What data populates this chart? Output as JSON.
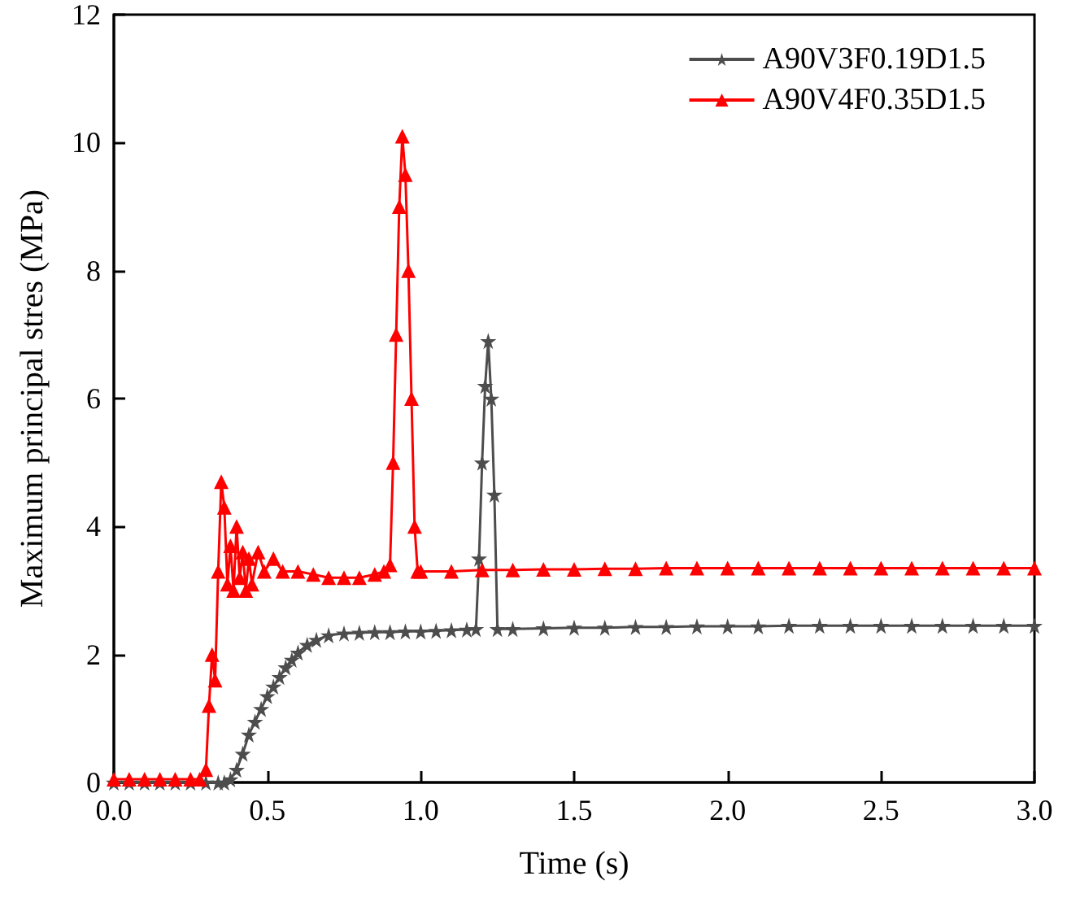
{
  "chart_data": {
    "type": "line",
    "xlabel": "Time (s)",
    "ylabel": "Maximum principal stres (MPa)",
    "xlim": [
      0,
      3
    ],
    "ylim": [
      0,
      12
    ],
    "xticks": [
      {
        "value": 0,
        "label": "0.0"
      },
      {
        "value": 0.5,
        "label": "0.5"
      },
      {
        "value": 1,
        "label": "1.0"
      },
      {
        "value": 1.5,
        "label": "1.5"
      },
      {
        "value": 2,
        "label": "2.0"
      },
      {
        "value": 2.5,
        "label": "2.5"
      },
      {
        "value": 3,
        "label": "3.0"
      }
    ],
    "yticks": [
      0,
      2,
      4,
      6,
      8,
      10,
      12
    ],
    "grid": false,
    "legend": "top right",
    "line_style": "solid",
    "series": [
      {
        "name": "A90V3F0.19D1.5",
        "color": "#4d4d4d",
        "marker": "star",
        "x": [
          0,
          0.05,
          0.1,
          0.15,
          0.2,
          0.25,
          0.3,
          0.34,
          0.36,
          0.38,
          0.4,
          0.42,
          0.44,
          0.46,
          0.48,
          0.5,
          0.52,
          0.54,
          0.56,
          0.58,
          0.6,
          0.63,
          0.66,
          0.7,
          0.75,
          0.8,
          0.85,
          0.9,
          0.95,
          1.0,
          1.05,
          1.1,
          1.15,
          1.18,
          1.19,
          1.2,
          1.21,
          1.22,
          1.23,
          1.24,
          1.25,
          1.3,
          1.4,
          1.5,
          1.6,
          1.7,
          1.8,
          1.9,
          2.0,
          2.1,
          2.2,
          2.3,
          2.4,
          2.5,
          2.6,
          2.7,
          2.8,
          2.9,
          3.0
        ],
        "values": [
          0,
          0,
          0,
          0,
          0,
          0,
          0,
          0,
          0,
          0.05,
          0.2,
          0.45,
          0.75,
          0.95,
          1.15,
          1.35,
          1.5,
          1.65,
          1.8,
          1.92,
          2.03,
          2.15,
          2.23,
          2.3,
          2.33,
          2.34,
          2.35,
          2.35,
          2.36,
          2.36,
          2.37,
          2.38,
          2.39,
          2.4,
          3.5,
          5.0,
          6.2,
          6.9,
          6.0,
          4.5,
          2.4,
          2.4,
          2.41,
          2.42,
          2.42,
          2.43,
          2.43,
          2.44,
          2.44,
          2.44,
          2.45,
          2.45,
          2.45,
          2.45,
          2.45,
          2.45,
          2.45,
          2.45,
          2.45
        ]
      },
      {
        "name": "A90V4F0.35D1.5",
        "color": "#ff0000",
        "marker": "triangle",
        "x": [
          0,
          0.05,
          0.1,
          0.15,
          0.2,
          0.25,
          0.28,
          0.3,
          0.31,
          0.32,
          0.33,
          0.34,
          0.35,
          0.36,
          0.37,
          0.38,
          0.39,
          0.4,
          0.41,
          0.42,
          0.43,
          0.44,
          0.45,
          0.47,
          0.49,
          0.52,
          0.55,
          0.6,
          0.65,
          0.7,
          0.75,
          0.8,
          0.85,
          0.88,
          0.9,
          0.91,
          0.92,
          0.93,
          0.94,
          0.95,
          0.96,
          0.97,
          0.98,
          0.99,
          1.0,
          1.1,
          1.2,
          1.3,
          1.4,
          1.5,
          1.6,
          1.7,
          1.8,
          1.9,
          2.0,
          2.1,
          2.2,
          2.3,
          2.4,
          2.5,
          2.6,
          2.7,
          2.8,
          2.9,
          3.0
        ],
        "values": [
          0.05,
          0.05,
          0.05,
          0.05,
          0.05,
          0.05,
          0.05,
          0.2,
          1.2,
          2.0,
          1.6,
          3.3,
          4.7,
          4.3,
          3.1,
          3.7,
          3.0,
          4.0,
          3.2,
          3.6,
          3.0,
          3.5,
          3.1,
          3.6,
          3.3,
          3.5,
          3.3,
          3.3,
          3.25,
          3.2,
          3.2,
          3.2,
          3.25,
          3.3,
          3.4,
          5.0,
          7.0,
          9.0,
          10.1,
          9.5,
          8.0,
          6.0,
          4.0,
          3.3,
          3.3,
          3.3,
          3.32,
          3.32,
          3.33,
          3.33,
          3.34,
          3.34,
          3.35,
          3.35,
          3.35,
          3.35,
          3.35,
          3.35,
          3.35,
          3.35,
          3.35,
          3.35,
          3.35,
          3.35,
          3.35
        ]
      }
    ]
  }
}
